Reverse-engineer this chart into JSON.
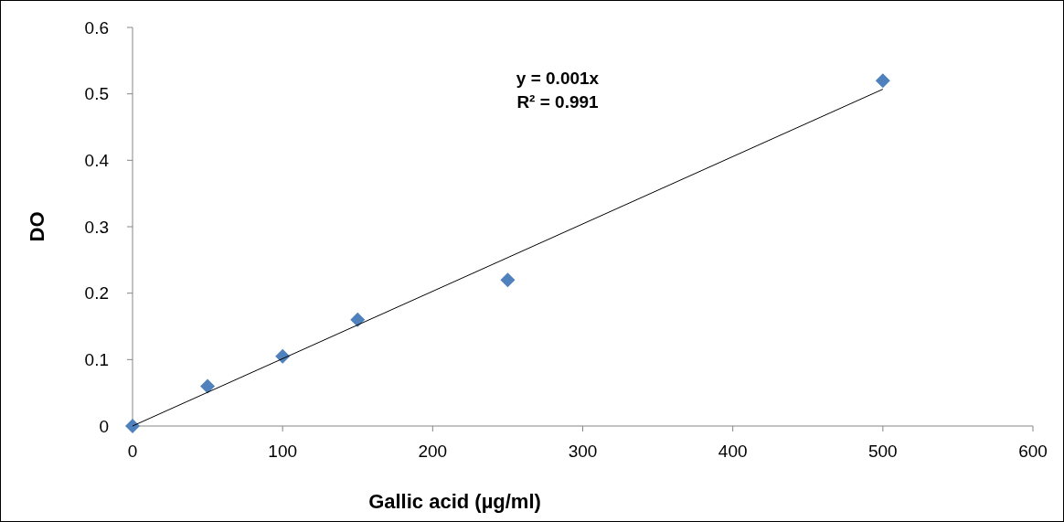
{
  "chart_data": {
    "type": "scatter",
    "xlabel": "Gallic acid (µg/ml)",
    "ylabel": "DO",
    "xlim": [
      0,
      600
    ],
    "xticks": [
      0,
      100,
      200,
      300,
      400,
      500,
      600
    ],
    "ylim": [
      0,
      0.6
    ],
    "yticks": [
      0,
      {
        "value": 0.1,
        "label": "0.1"
      },
      {
        "value": 0.2,
        "label": "0.2"
      },
      {
        "value": 0.3,
        "label": "0.3"
      },
      {
        "value": 0.4,
        "label": "0.4"
      },
      {
        "value": 0.5,
        "label": "0.5"
      },
      {
        "value": 0.6,
        "label": "0.6"
      }
    ],
    "grid": false,
    "marker": "diamond",
    "annotations": [
      "y = 0.001x",
      "R² = 0.991"
    ],
    "series": [
      {
        "color": "#4f81bd",
        "x": [
          0,
          50,
          100,
          150,
          250,
          500
        ],
        "values": [
          0,
          0.06,
          0.105,
          0.16,
          0.22,
          0.52
        ]
      },
      {
        "type": "line",
        "color": "#000000",
        "x": [
          0,
          500
        ],
        "values": [
          0,
          0.507
        ],
        "marker": "none",
        "line_style": "solid"
      }
    ]
  }
}
